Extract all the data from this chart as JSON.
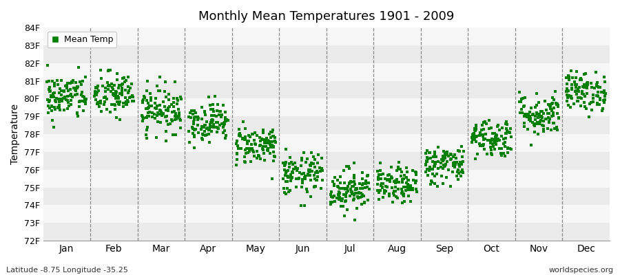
{
  "title": "Monthly Mean Temperatures 1901 - 2009",
  "ylabel": "Temperature",
  "ylim": [
    72,
    84
  ],
  "yticks": [
    72,
    73,
    74,
    75,
    76,
    77,
    78,
    79,
    80,
    81,
    82,
    83,
    84
  ],
  "ytick_labels": [
    "72F",
    "73F",
    "74F",
    "75F",
    "76F",
    "77F",
    "78F",
    "79F",
    "80F",
    "81F",
    "82F",
    "83F",
    "84F"
  ],
  "months": [
    "Jan",
    "Feb",
    "Mar",
    "Apr",
    "May",
    "Jun",
    "Jul",
    "Aug",
    "Sep",
    "Oct",
    "Nov",
    "Dec"
  ],
  "dot_color": "#008000",
  "legend_label": "Mean Temp",
  "footer_left": "Latitude -8.75 Longitude -35.25",
  "footer_right": "worldspecies.org",
  "background_color": "#ffffff",
  "band_color_odd": "#ebebeb",
  "band_color_even": "#f7f7f7",
  "monthly_means": [
    80.1,
    80.2,
    79.4,
    78.7,
    77.4,
    75.7,
    74.9,
    75.1,
    76.3,
    77.8,
    79.1,
    80.4
  ],
  "monthly_stds": [
    0.65,
    0.65,
    0.65,
    0.55,
    0.55,
    0.6,
    0.6,
    0.5,
    0.55,
    0.55,
    0.6,
    0.55
  ],
  "n_years": 109,
  "seed": 42,
  "marker_size": 12,
  "xlim_left": -0.5,
  "xlim_right": 12.5
}
